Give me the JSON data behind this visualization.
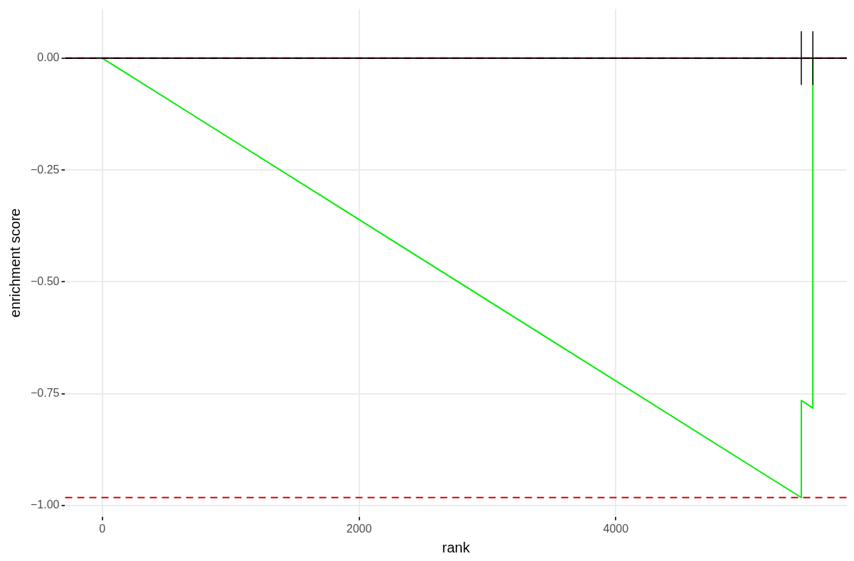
{
  "chart_data": {
    "type": "line",
    "xlabel": "rank",
    "ylabel": "enrichment score",
    "xlim": [
      -290,
      5800
    ],
    "xticks": [
      0,
      2000,
      4000
    ],
    "ylim": [
      -1.025,
      0.11
    ],
    "yticks": [
      {
        "value": 0,
        "label": "0.00"
      },
      {
        "value": -0.25,
        "label": "−0.25"
      },
      {
        "value": -0.5,
        "label": "−0.50"
      },
      {
        "value": -0.75,
        "label": "−0.75"
      },
      {
        "value": -1,
        "label": "−1.00"
      }
    ],
    "grid": true,
    "legend": false,
    "marker": "none",
    "line_style": "solid",
    "series": [
      {
        "color": "#00ee00",
        "x": [
          0,
          5445,
          5445,
          5535,
          5535,
          5535
        ],
        "values": [
          0,
          -0.982,
          -0.765,
          -0.782,
          -0.435,
          0
        ]
      },
      {
        "color": "#000000",
        "x": [
          5445,
          5445
        ],
        "values": [
          -0.06,
          0.06
        ]
      },
      {
        "color": "#000000",
        "x": [
          5535,
          5535
        ],
        "values": [
          -0.06,
          0.06
        ]
      }
    ],
    "ref_lines": [
      {
        "axis": "y",
        "value": -0.982,
        "color": "#dd0000",
        "line_style": "dashed"
      },
      {
        "axis": "y",
        "value": 0,
        "color": "#dd0000",
        "line_style": "dashed"
      },
      {
        "axis": "y",
        "value": 0,
        "color": "#000000",
        "line_style": "solid"
      }
    ]
  }
}
